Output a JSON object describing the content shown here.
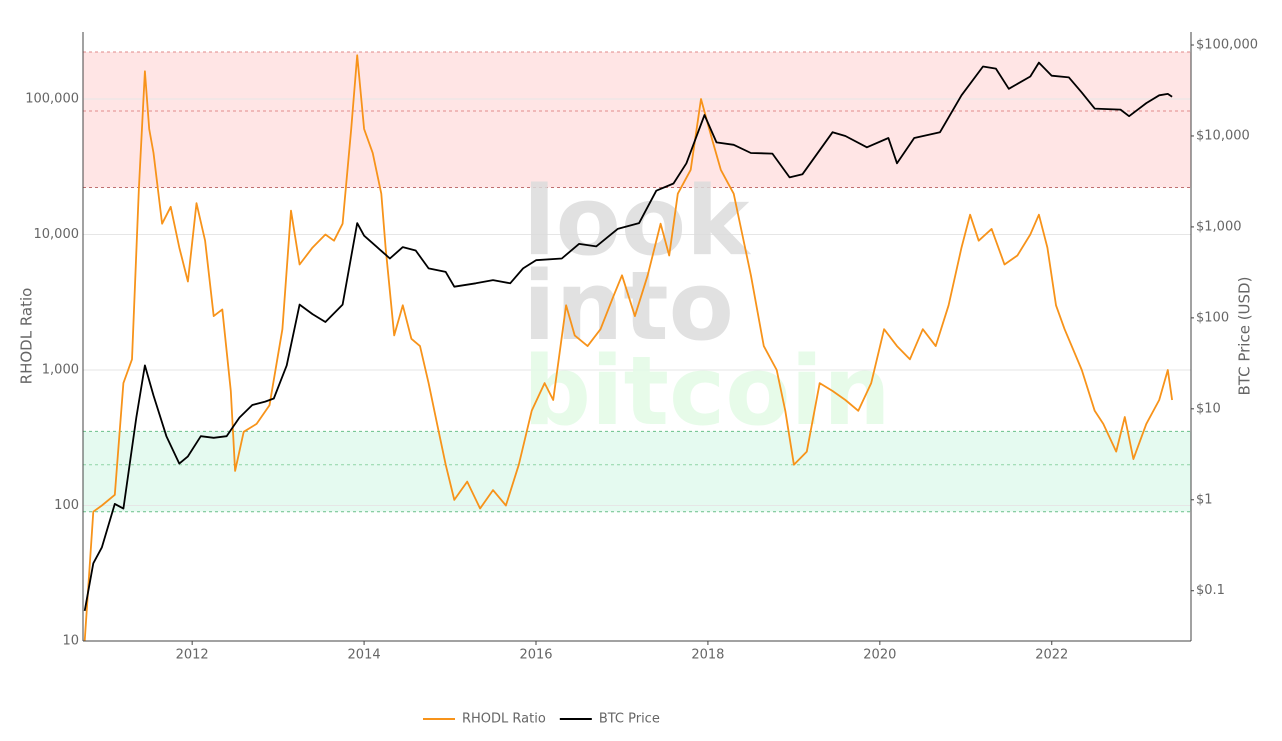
{
  "chart_data": {
    "type": "line",
    "y_title": "RHODL Ratio",
    "y2_title": "BTC Price (USD)",
    "watermark": [
      "look",
      "into",
      "bitcoin"
    ],
    "log_y": true,
    "log_y2": true,
    "grid": true,
    "legend": "bottom",
    "xlim": [
      2010.73,
      2023.62
    ],
    "xticks": [
      2012,
      2014,
      2016,
      2018,
      2020,
      2022
    ],
    "ylim": [
      10,
      312000
    ],
    "yticks": [
      10,
      100,
      {
        "value": 1000,
        "label": "1,000"
      },
      {
        "value": 10000,
        "label": "10,000"
      },
      {
        "value": 100000,
        "label": "100,000"
      }
    ],
    "y2lim": [
      0.028,
      139000
    ],
    "y2ticks": [
      {
        "value": 0.1,
        "label": "$0.1"
      },
      {
        "value": 1,
        "label": "$1"
      },
      {
        "value": 10,
        "label": "$10"
      },
      {
        "value": 100,
        "label": "$100"
      },
      {
        "value": 1000,
        "label": "$1,000"
      },
      {
        "value": 10000,
        "label": "$10,000"
      },
      {
        "value": 100000,
        "label": "$100,000"
      }
    ],
    "zones": [
      {
        "from": 22200,
        "to": 222000,
        "color": "#ffe5e5"
      },
      {
        "from": 90,
        "to": 352,
        "color": "#e5faf0"
      }
    ],
    "zone_lines": [
      {
        "value": 222000,
        "color": "#e08a8a"
      },
      {
        "value": 81500,
        "color": "#e08a8a"
      },
      {
        "value": 22200,
        "color": "#c07070"
      },
      {
        "value": 352,
        "color": "#6cc08a"
      },
      {
        "value": 200,
        "color": "#8fd4a6"
      },
      {
        "value": 90,
        "color": "#6cc08a"
      }
    ],
    "series": [
      {
        "name": "RHODL Ratio",
        "color": "#f7931a",
        "axis": "y",
        "x": [
          2010.75,
          2010.85,
          2010.95,
          2011.1,
          2011.2,
          2011.3,
          2011.38,
          2011.45,
          2011.5,
          2011.55,
          2011.65,
          2011.75,
          2011.85,
          2011.95,
          2012.05,
          2012.15,
          2012.25,
          2012.35,
          2012.45,
          2012.5,
          2012.6,
          2012.75,
          2012.9,
          2013.05,
          2013.15,
          2013.25,
          2013.4,
          2013.55,
          2013.65,
          2013.75,
          2013.85,
          2013.92,
          2014.0,
          2014.1,
          2014.2,
          2014.25,
          2014.35,
          2014.45,
          2014.55,
          2014.65,
          2014.75,
          2014.85,
          2014.95,
          2015.05,
          2015.2,
          2015.35,
          2015.5,
          2015.65,
          2015.8,
          2015.95,
          2016.1,
          2016.2,
          2016.35,
          2016.45,
          2016.6,
          2016.75,
          2016.9,
          2017.0,
          2017.15,
          2017.3,
          2017.45,
          2017.55,
          2017.65,
          2017.8,
          2017.92,
          2018.05,
          2018.15,
          2018.3,
          2018.4,
          2018.5,
          2018.65,
          2018.8,
          2018.9,
          2019.0,
          2019.15,
          2019.3,
          2019.45,
          2019.6,
          2019.75,
          2019.9,
          2020.05,
          2020.2,
          2020.35,
          2020.5,
          2020.65,
          2020.8,
          2020.95,
          2021.05,
          2021.15,
          2021.3,
          2021.45,
          2021.6,
          2021.75,
          2021.85,
          2021.95,
          2022.05,
          2022.15,
          2022.35,
          2022.5,
          2022.6,
          2022.75,
          2022.85,
          2022.95,
          2023.1,
          2023.25,
          2023.35,
          2023.4
        ],
        "values": [
          10,
          90,
          100,
          120,
          800,
          1200,
          22000,
          160000,
          60000,
          40000,
          12000,
          16000,
          8000,
          4500,
          17000,
          9000,
          2500,
          2800,
          700,
          180,
          350,
          400,
          550,
          2000,
          15000,
          6000,
          8000,
          10000,
          9000,
          12000,
          60000,
          210000,
          60000,
          40000,
          20000,
          8000,
          1800,
          3000,
          1700,
          1500,
          800,
          400,
          200,
          110,
          150,
          95,
          130,
          100,
          200,
          500,
          800,
          600,
          3000,
          1800,
          1500,
          2000,
          3500,
          5000,
          2500,
          5000,
          12000,
          7000,
          20000,
          30000,
          100000,
          50000,
          30000,
          20000,
          10000,
          5000,
          1500,
          1000,
          500,
          200,
          250,
          800,
          700,
          600,
          500,
          800,
          2000,
          1500,
          1200,
          2000,
          1500,
          3000,
          8000,
          14000,
          9000,
          11000,
          6000,
          7000,
          10000,
          14000,
          8000,
          3000,
          2000,
          1000,
          500,
          400,
          250,
          450,
          220,
          400,
          600,
          1000,
          600
        ]
      },
      {
        "name": "BTC Price",
        "color": "#000000",
        "axis": "y2",
        "x": [
          2010.75,
          2010.85,
          2010.95,
          2011.1,
          2011.2,
          2011.35,
          2011.45,
          2011.55,
          2011.7,
          2011.85,
          2011.95,
          2012.1,
          2012.25,
          2012.4,
          2012.55,
          2012.7,
          2012.85,
          2012.95,
          2013.1,
          2013.25,
          2013.4,
          2013.55,
          2013.75,
          2013.92,
          2014.0,
          2014.15,
          2014.3,
          2014.45,
          2014.6,
          2014.75,
          2014.95,
          2015.05,
          2015.3,
          2015.5,
          2015.7,
          2015.85,
          2016.0,
          2016.3,
          2016.5,
          2016.7,
          2016.95,
          2017.2,
          2017.4,
          2017.6,
          2017.75,
          2017.96,
          2018.1,
          2018.3,
          2018.5,
          2018.75,
          2018.95,
          2019.1,
          2019.45,
          2019.6,
          2019.85,
          2020.1,
          2020.2,
          2020.4,
          2020.7,
          2020.95,
          2021.2,
          2021.35,
          2021.5,
          2021.75,
          2021.85,
          2022.0,
          2022.2,
          2022.35,
          2022.5,
          2022.8,
          2022.9,
          2023.1,
          2023.25,
          2023.35,
          2023.4
        ],
        "values": [
          0.06,
          0.2,
          0.3,
          0.9,
          0.8,
          8,
          30,
          14,
          5,
          2.5,
          3,
          5,
          4.8,
          5,
          8,
          11,
          12,
          13,
          30,
          140,
          110,
          90,
          140,
          1100,
          800,
          600,
          450,
          600,
          550,
          350,
          320,
          220,
          240,
          260,
          240,
          350,
          430,
          450,
          650,
          610,
          950,
          1100,
          2500,
          3000,
          5000,
          17000,
          8500,
          8000,
          6500,
          6400,
          3500,
          3800,
          11000,
          10000,
          7500,
          9500,
          5000,
          9500,
          11000,
          28000,
          58000,
          55000,
          33000,
          45000,
          64000,
          46000,
          44000,
          30000,
          20000,
          19500,
          16500,
          23000,
          28000,
          29000,
          27000
        ]
      }
    ]
  }
}
